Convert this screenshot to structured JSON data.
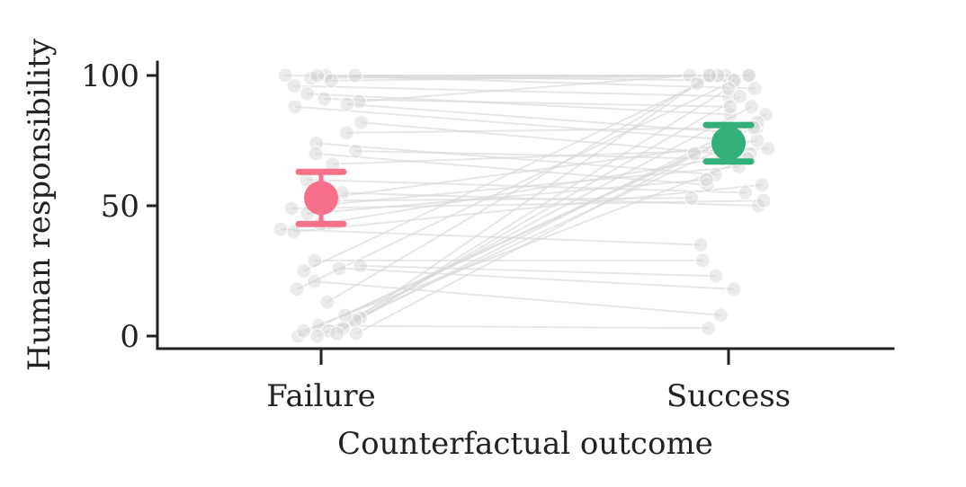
{
  "chart_data": {
    "type": "scatter",
    "xlabel": "Counterfactual outcome",
    "ylabel": "Human responsibility",
    "categories": [
      "Failure",
      "Success"
    ],
    "ylim": [
      -4,
      105
    ],
    "yticks": [
      0,
      50,
      100
    ],
    "grid": false,
    "summary": [
      {
        "category": "Failure",
        "mean": 53,
        "ci": [
          43,
          63
        ],
        "color": "#f7718a"
      },
      {
        "category": "Success",
        "mean": 74,
        "ci": [
          67,
          81
        ],
        "color": "#33b07a"
      }
    ],
    "participant_color": "#d3d3d3",
    "pairs": [
      [
        100,
        100
      ],
      [
        100,
        98
      ],
      [
        100,
        100
      ],
      [
        99,
        100
      ],
      [
        100,
        95
      ],
      [
        98,
        100
      ],
      [
        96,
        92
      ],
      [
        93,
        85
      ],
      [
        91,
        88
      ],
      [
        90,
        100
      ],
      [
        89,
        78
      ],
      [
        88,
        75
      ],
      [
        82,
        70
      ],
      [
        78,
        80
      ],
      [
        74,
        62
      ],
      [
        71,
        68
      ],
      [
        70,
        58
      ],
      [
        66,
        72
      ],
      [
        60,
        55
      ],
      [
        55,
        50
      ],
      [
        53,
        75
      ],
      [
        52,
        53
      ],
      [
        50,
        65
      ],
      [
        49,
        52
      ],
      [
        47,
        60
      ],
      [
        43,
        70
      ],
      [
        41,
        35
      ],
      [
        40,
        58
      ],
      [
        29,
        29
      ],
      [
        27,
        23
      ],
      [
        26,
        18
      ],
      [
        25,
        100
      ],
      [
        21,
        8
      ],
      [
        18,
        98
      ],
      [
        13,
        97
      ],
      [
        7,
        92
      ],
      [
        6,
        85
      ],
      [
        4,
        3
      ],
      [
        3,
        100
      ],
      [
        2,
        88
      ],
      [
        1,
        82
      ],
      [
        0,
        75
      ],
      [
        0,
        70
      ],
      [
        1,
        95
      ],
      [
        8,
        80
      ],
      [
        2,
        68
      ]
    ]
  }
}
